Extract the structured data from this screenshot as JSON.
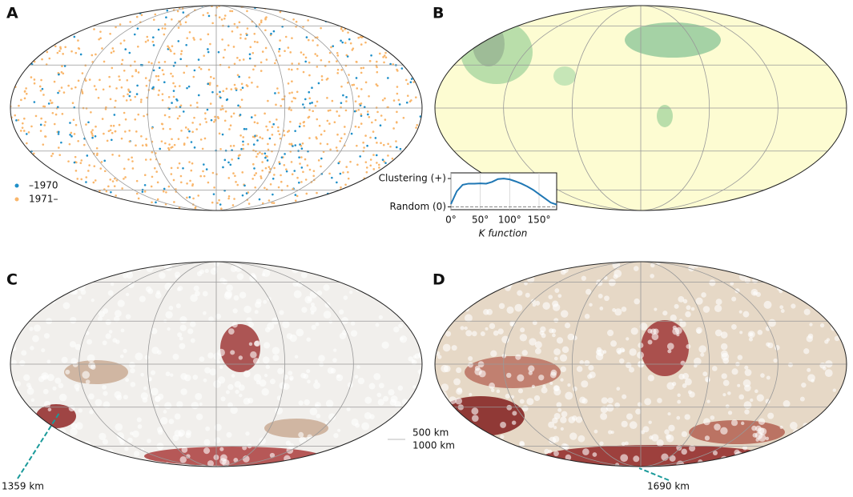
{
  "panels": [
    {
      "label": "A",
      "legend": [
        "–1970",
        "1971–"
      ]
    },
    {
      "label": "B",
      "inset": {
        "type": "line",
        "xlabel": "K function",
        "xlim": [
          0,
          180
        ],
        "ylim": [
          -0.1,
          1.2
        ],
        "xticks": [
          {
            "value": 0,
            "label": "0°"
          },
          {
            "value": 50,
            "label": "50°"
          },
          {
            "value": 100,
            "label": "100°"
          },
          {
            "value": 150,
            "label": "150°"
          }
        ],
        "yticks": [
          {
            "value": 0,
            "label": "Random (0)"
          },
          {
            "value": 1,
            "label": "Clustering (+)"
          }
        ],
        "x": [
          0,
          10,
          20,
          30,
          40,
          50,
          60,
          70,
          80,
          90,
          100,
          110,
          120,
          130,
          140,
          150,
          160,
          170,
          180
        ],
        "values": [
          0.1,
          0.55,
          0.78,
          0.82,
          0.82,
          0.83,
          0.82,
          0.88,
          0.98,
          1.0,
          0.97,
          0.9,
          0.82,
          0.72,
          0.6,
          0.45,
          0.3,
          0.15,
          0.08
        ],
        "color": "#1f77b4"
      }
    },
    {
      "label": "C",
      "scale": [
        "500 km",
        "1000 km"
      ],
      "annotation": "1359 km"
    },
    {
      "label": "D",
      "annotation": "1690 km"
    }
  ]
}
